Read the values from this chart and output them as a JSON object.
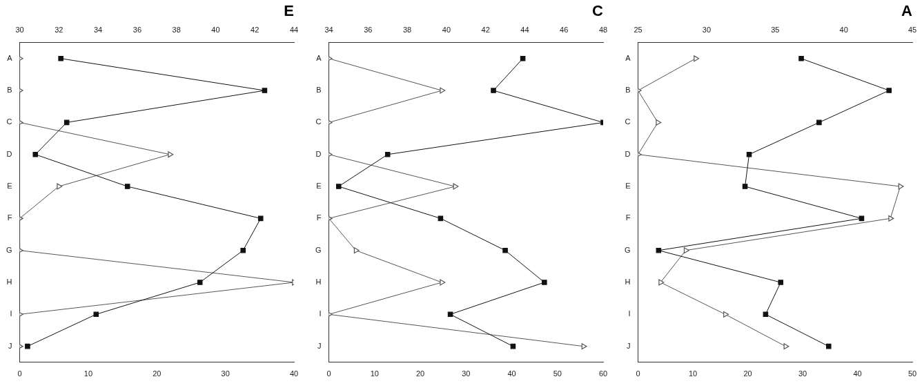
{
  "chart_data": [
    {
      "type": "line",
      "title": "A",
      "orientation": "horizontal",
      "categories": [
        "A",
        "B",
        "C",
        "D",
        "E",
        "F",
        "G",
        "H",
        "I",
        "J"
      ],
      "grid": false,
      "legend": false,
      "xlim": [
        0,
        50
      ],
      "xticks": [
        0,
        10,
        20,
        30,
        40,
        50
      ],
      "x2lim": [
        25,
        45
      ],
      "x2ticks": [
        25,
        30,
        35,
        40,
        45
      ],
      "series": [
        {
          "color": "#111111",
          "marker": "square",
          "axis": "x2",
          "values": [
            36.9,
            43.3,
            38.2,
            33.1,
            32.8,
            41.3,
            26.5,
            35.4,
            34.3,
            38.9
          ]
        },
        {
          "color": "#555555",
          "marker": "triangle",
          "values": [
            10.5,
            0,
            3.6,
            0,
            47.8,
            46.0,
            8.7,
            4.1,
            15.9,
            26.9
          ]
        }
      ]
    },
    {
      "type": "line",
      "title": "C",
      "orientation": "horizontal",
      "categories": [
        "A",
        "B",
        "C",
        "D",
        "E",
        "F",
        "G",
        "H",
        "I",
        "J"
      ],
      "grid": false,
      "legend": false,
      "xlim": [
        0,
        60
      ],
      "xticks": [
        0,
        10,
        20,
        30,
        40,
        50,
        60
      ],
      "x2lim": [
        34,
        48
      ],
      "x2ticks": [
        34,
        36,
        38,
        40,
        42,
        44,
        46,
        48
      ],
      "series": [
        {
          "color": "#111111",
          "marker": "square",
          "axis": "x2",
          "values": [
            43.9,
            42.4,
            48.0,
            37.0,
            34.5,
            39.7,
            43.0,
            45.0,
            40.2,
            43.4
          ]
        },
        {
          "color": "#555555",
          "marker": "triangle",
          "values": [
            0,
            24.7,
            0,
            0,
            27.6,
            0,
            5.9,
            24.7,
            0,
            55.7
          ]
        }
      ]
    },
    {
      "type": "line",
      "title": "E",
      "orientation": "horizontal",
      "categories": [
        "A",
        "B",
        "C",
        "D",
        "E",
        "F",
        "G",
        "H",
        "I",
        "J"
      ],
      "grid": false,
      "legend": false,
      "xlim": [
        0,
        40
      ],
      "xticks": [
        0,
        10,
        20,
        30,
        40
      ],
      "x2lim": [
        30,
        44
      ],
      "x2ticks": [
        30,
        32,
        34,
        36,
        38,
        40,
        42,
        44
      ],
      "series": [
        {
          "color": "#111111",
          "marker": "square",
          "axis": "x2",
          "values": [
            32.1,
            42.5,
            32.4,
            30.8,
            35.5,
            42.3,
            41.4,
            39.2,
            33.9,
            30.4
          ]
        },
        {
          "color": "#555555",
          "marker": "triangle",
          "values": [
            0,
            0,
            0,
            21.9,
            5.7,
            0,
            0,
            40,
            0,
            0
          ]
        }
      ]
    }
  ]
}
